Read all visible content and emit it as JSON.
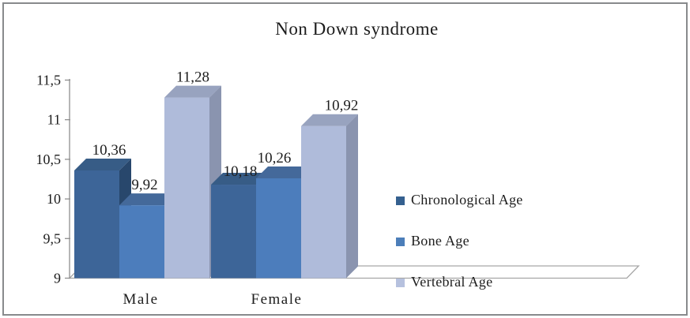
{
  "window": {
    "background_color": "#FFFFFF",
    "frame_border_color": "#888A8C"
  },
  "chart_data": {
    "type": "bar",
    "variant": "3d-clustered-column",
    "title": "Non Down syndrome",
    "categories": [
      "Male",
      "Female"
    ],
    "series": [
      {
        "name": "Chronological Age",
        "values": [
          10.36,
          10.18
        ],
        "value_labels": [
          "10,36",
          "10,18"
        ],
        "colors": {
          "front": "#3D6598",
          "top": "#375C86",
          "side": "#28476C",
          "legend": "#35608F"
        }
      },
      {
        "name": "Bone Age",
        "values": [
          9.92,
          10.26
        ],
        "value_labels": [
          "9,92",
          "10,26"
        ],
        "colors": {
          "front": "#4C7DBC",
          "top": "#44699A",
          "side": "#3A5F8E",
          "legend": "#4C7EB9"
        }
      },
      {
        "name": "Vertebral Age",
        "values": [
          11.28,
          10.92
        ],
        "value_labels": [
          "11,28",
          "10,92"
        ],
        "colors": {
          "front": "#AFBBDA",
          "top": "#98A3BF",
          "side": "#8A94AF",
          "legend": "#B6C1DE"
        }
      }
    ],
    "y_axis": {
      "min": 9,
      "max": 11.5,
      "step": 0.5,
      "tick_labels": [
        "9",
        "9,5",
        "10",
        "10,5",
        "11",
        "11,5"
      ],
      "axis_color": "#8F8F8F"
    },
    "x_axis": {
      "labels": [
        "Male",
        "Female"
      ]
    },
    "legend": {
      "position": "right"
    },
    "grid": "off",
    "floor": {
      "fill": "#FFFFFF",
      "stroke": "#A6A6A6"
    },
    "text_color": "#1D1D1D"
  }
}
